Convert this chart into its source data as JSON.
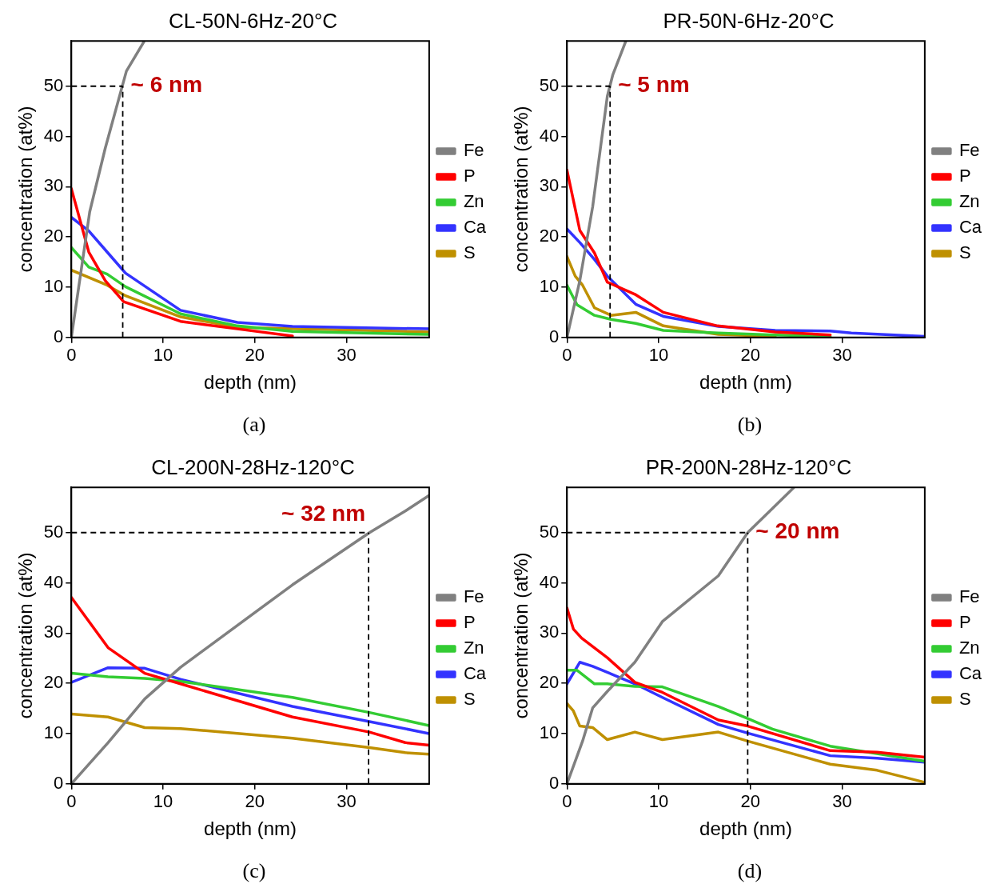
{
  "chart_data": [
    {
      "type": "line",
      "title": "CL-50N-6Hz-20°C",
      "xlabel": "depth (nm)",
      "ylabel": "concentration (at%)",
      "xlim": [
        0,
        39
      ],
      "ylim": [
        0,
        59
      ],
      "xticks": [
        0,
        10,
        20,
        30
      ],
      "yticks": [
        0,
        10,
        20,
        30,
        40,
        50
      ],
      "grid": false,
      "legend": "right",
      "annotations": [
        "(a)"
      ],
      "ref_lines": [
        {
          "axis": "y",
          "value": 50
        },
        {
          "axis": "x",
          "value": 5.6,
          "label": "~ 6 nm"
        }
      ],
      "series": [
        {
          "name": "Fe",
          "color": "#808080",
          "x": [
            0,
            2,
            3.7,
            6,
            7.9
          ],
          "values": [
            0,
            25,
            37.7,
            53,
            58.8
          ]
        },
        {
          "name": "P",
          "color": "#ff0000",
          "x": [
            0,
            1.9,
            3.7,
            5.7,
            11.9,
            18.1,
            24.1
          ],
          "values": [
            29.6,
            17,
            11.3,
            7.1,
            3.2,
            1.7,
            0.3
          ]
        },
        {
          "name": "Zn",
          "color": "#33cc33",
          "x": [
            0,
            1.9,
            3.9,
            5.9,
            11.9,
            18.1,
            24.1,
            39
          ],
          "values": [
            17.9,
            14,
            12.6,
            10.1,
            4.7,
            2.3,
            1.2,
            0.6
          ]
        },
        {
          "name": "Ca",
          "color": "#3333ff",
          "x": [
            0,
            1.9,
            3.9,
            5.9,
            11.9,
            18.1,
            24.1,
            39
          ],
          "values": [
            23.9,
            21.2,
            17,
            12.8,
            5.4,
            3,
            2.2,
            1.7
          ]
        },
        {
          "name": "S",
          "color": "#bf9000",
          "x": [
            0,
            3.9,
            5.9,
            11.9,
            18.1,
            39
          ],
          "values": [
            13.4,
            10.4,
            8.3,
            4.1,
            2,
            1.1
          ]
        }
      ]
    },
    {
      "type": "line",
      "title": "PR-50N-6Hz-20°C",
      "xlabel": "depth (nm)",
      "ylabel": "concentration (at%)",
      "xlim": [
        0,
        39
      ],
      "ylim": [
        0,
        59
      ],
      "xticks": [
        0,
        10,
        20,
        30
      ],
      "yticks": [
        0,
        10,
        20,
        30,
        40,
        50
      ],
      "grid": false,
      "legend": "right",
      "annotations": [
        "(b)"
      ],
      "ref_lines": [
        {
          "axis": "y",
          "value": 50
        },
        {
          "axis": "x",
          "value": 4.7,
          "label": "~ 5 nm"
        }
      ],
      "series": [
        {
          "name": "Fe",
          "color": "#808080",
          "x": [
            0,
            1.4,
            2.8,
            4.4,
            5,
            6.4
          ],
          "values": [
            0,
            11.3,
            26,
            48,
            52.3,
            58.9
          ]
        },
        {
          "name": "P",
          "color": "#ff0000",
          "x": [
            0,
            1.4,
            3,
            4.4,
            7.4,
            10.5,
            16.4,
            22.7,
            28.7
          ],
          "values": [
            33.3,
            21.3,
            16.8,
            11,
            8.6,
            5,
            2.3,
            1.1,
            0.5
          ]
        },
        {
          "name": "Zn",
          "color": "#33cc33",
          "x": [
            0,
            1.1,
            3,
            4.8,
            7.5,
            10.5,
            16.5,
            22.7,
            28.7
          ],
          "values": [
            10.4,
            6.5,
            4.4,
            3.6,
            2.8,
            1.4,
            0.9,
            0.5,
            0.2
          ]
        },
        {
          "name": "Ca",
          "color": "#3333ff",
          "x": [
            0,
            1.4,
            3,
            4.4,
            7.5,
            10.5,
            16.5,
            22.7,
            28.7,
            31,
            39
          ],
          "values": [
            21.6,
            18.9,
            15.5,
            12.2,
            6.6,
            4.2,
            2.2,
            1.4,
            1.3,
            0.9,
            0.2
          ]
        },
        {
          "name": "S",
          "color": "#bf9000",
          "x": [
            0,
            0.9,
            1.7,
            3,
            4.8,
            7.5,
            10.5,
            16.5,
            22.7
          ],
          "values": [
            16.1,
            12.2,
            10.4,
            5.9,
            4.4,
            5,
            2.3,
            0.6,
            0.2
          ]
        }
      ]
    },
    {
      "type": "line",
      "title": "CL-200N-28Hz-120°C",
      "xlabel": "depth (nm)",
      "ylabel": "concentration (at%)",
      "xlim": [
        0,
        39
      ],
      "ylim": [
        0,
        59
      ],
      "xticks": [
        0,
        10,
        20,
        30
      ],
      "yticks": [
        0,
        10,
        20,
        30,
        40,
        50
      ],
      "grid": false,
      "legend": "right",
      "annotations": [
        "(c)"
      ],
      "ref_lines": [
        {
          "axis": "y",
          "value": 50
        },
        {
          "axis": "x",
          "value": 32.4,
          "label": "~ 32 nm"
        }
      ],
      "series": [
        {
          "name": "Fe",
          "color": "#808080",
          "x": [
            0,
            4,
            8,
            11.9,
            24.1,
            32.5,
            36.4,
            39
          ],
          "values": [
            0,
            8.2,
            16.9,
            23.2,
            39.6,
            50,
            54.3,
            57.4
          ]
        },
        {
          "name": "P",
          "color": "#ff0000",
          "x": [
            0,
            4,
            8,
            11.9,
            24.1,
            32.5,
            36.4,
            39
          ],
          "values": [
            37.1,
            27.1,
            22,
            19.9,
            13.3,
            10.3,
            8.2,
            7.7
          ]
        },
        {
          "name": "Zn",
          "color": "#33cc33",
          "x": [
            0,
            4,
            8,
            11.9,
            24.1,
            32.5,
            39
          ],
          "values": [
            22,
            21.3,
            21,
            20.4,
            17.2,
            14.2,
            11.6
          ]
        },
        {
          "name": "Ca",
          "color": "#3333ff",
          "x": [
            0,
            4,
            8,
            11.9,
            24.1,
            32.5,
            39
          ],
          "values": [
            20.2,
            23.1,
            23,
            20.8,
            15.4,
            12.4,
            10
          ]
        },
        {
          "name": "S",
          "color": "#bf9000",
          "x": [
            0,
            4,
            8,
            11.9,
            24.1,
            32.5,
            36.4,
            39
          ],
          "values": [
            13.9,
            13.3,
            11.2,
            11,
            9.1,
            7.2,
            6.2,
            5.9
          ]
        }
      ]
    },
    {
      "type": "line",
      "title": "PR-200N-28Hz-120°C",
      "xlabel": "depth (nm)",
      "ylabel": "concentration (at%)",
      "xlim": [
        0,
        39
      ],
      "ylim": [
        0,
        59
      ],
      "xticks": [
        0,
        10,
        20,
        30
      ],
      "yticks": [
        0,
        10,
        20,
        30,
        40,
        50
      ],
      "grid": false,
      "legend": "right",
      "annotations": [
        "(d)"
      ],
      "ref_lines": [
        {
          "axis": "y",
          "value": 50
        },
        {
          "axis": "x",
          "value": 19.7,
          "label": "~ 20 nm"
        }
      ],
      "series": [
        {
          "name": "Fe",
          "color": "#808080",
          "x": [
            0,
            1.7,
            2.8,
            4.4,
            7.4,
            10.4,
            16.5,
            19.7,
            24.7
          ],
          "values": [
            0,
            8.5,
            15.1,
            18.4,
            24.2,
            32.3,
            41.4,
            50,
            58.9
          ]
        },
        {
          "name": "P",
          "color": "#ff0000",
          "x": [
            0,
            0.7,
            1.6,
            4.4,
            7.4,
            10.4,
            16.5,
            19.7,
            28.7,
            33.8,
            39
          ],
          "values": [
            35,
            30.8,
            29,
            25.1,
            20.2,
            18.2,
            12.7,
            11.5,
            6.6,
            6.3,
            5.3
          ]
        },
        {
          "name": "Zn",
          "color": "#33cc33",
          "x": [
            0,
            1.1,
            3,
            4.4,
            7.4,
            10.4,
            16.5,
            19.7,
            22.4,
            28.7,
            39
          ],
          "values": [
            22.6,
            22.6,
            19.9,
            19.9,
            19.4,
            19.3,
            15.4,
            13,
            10.9,
            7.5,
            4.5
          ]
        },
        {
          "name": "Ca",
          "color": "#3333ff",
          "x": [
            0,
            1.4,
            2.8,
            7.4,
            10.4,
            16.5,
            19.7,
            28.7,
            33.8,
            39
          ],
          "values": [
            19.9,
            24.2,
            23.4,
            19.9,
            17.2,
            11.8,
            10.1,
            5.6,
            5.1,
            4.3
          ]
        },
        {
          "name": "S",
          "color": "#bf9000",
          "x": [
            0,
            0.7,
            1.4,
            2.8,
            4.4,
            7.4,
            10.4,
            16.5,
            19.7,
            28.7,
            33.8,
            39
          ],
          "values": [
            16,
            14.5,
            11.5,
            11.2,
            8.8,
            10.3,
            8.8,
            10.3,
            8.5,
            3.9,
            2.7,
            0.3
          ]
        }
      ]
    }
  ]
}
